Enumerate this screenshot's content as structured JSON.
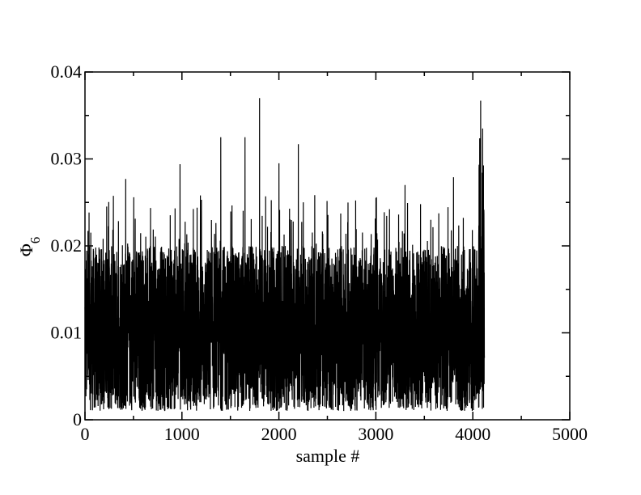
{
  "chart_data": {
    "type": "line",
    "title": "",
    "xlabel": "sample #",
    "ylabel": {
      "symbol": "Φ",
      "subscript": "6"
    },
    "xlim": [
      0,
      5000
    ],
    "ylim": [
      0,
      0.04
    ],
    "xticks": [
      "0",
      "1000",
      "2000",
      "3000",
      "4000",
      "5000"
    ],
    "yticks": [
      "0",
      "0.01",
      "0.02",
      "0.03",
      "0.04"
    ],
    "grid": false,
    "legend": "none",
    "line_color": "#000000",
    "series": [
      {
        "x_range": [
          0,
          4120
        ],
        "n_samples": 4120,
        "description_values": {
          "typical_band": [
            0.001,
            0.02
          ],
          "notable_peaks": [
            {
              "x": 420,
              "y": 0.0277
            },
            {
              "x": 980,
              "y": 0.0294
            },
            {
              "x": 1190,
              "y": 0.0258
            },
            {
              "x": 1400,
              "y": 0.0325
            },
            {
              "x": 1650,
              "y": 0.0325
            },
            {
              "x": 1800,
              "y": 0.037
            },
            {
              "x": 2000,
              "y": 0.0295
            },
            {
              "x": 2200,
              "y": 0.0317
            },
            {
              "x": 3000,
              "y": 0.0255
            },
            {
              "x": 3300,
              "y": 0.027
            },
            {
              "x": 3800,
              "y": 0.0279
            },
            {
              "x": 4080,
              "y": 0.0367
            },
            {
              "x": 4100,
              "y": 0.0335
            }
          ],
          "end_min": 0.0125
        }
      }
    ]
  }
}
